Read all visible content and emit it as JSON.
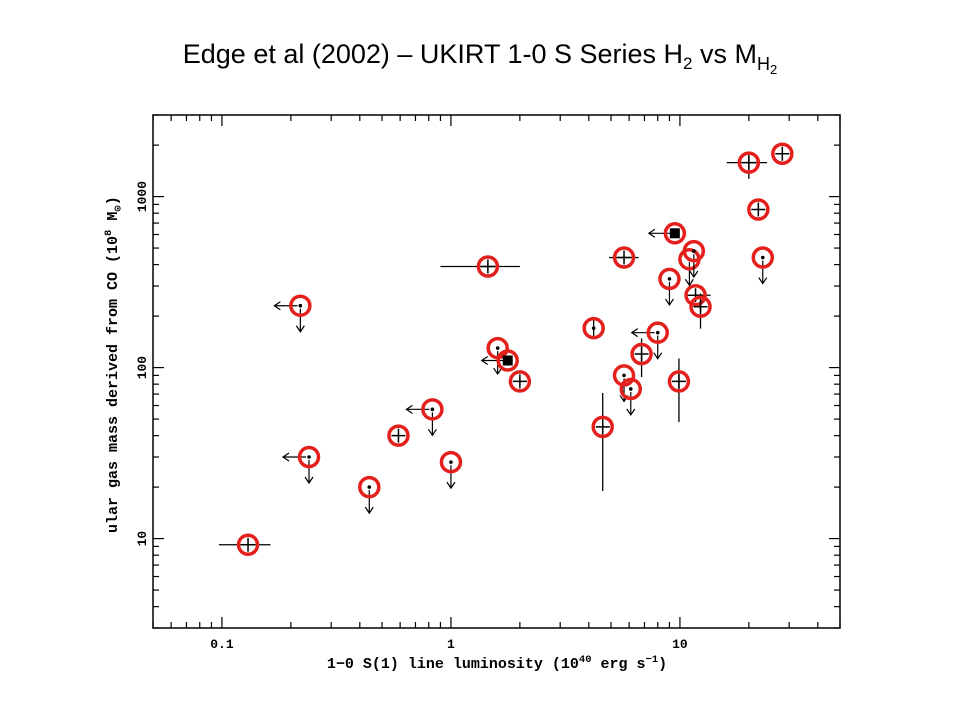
{
  "chart_data": {
    "type": "scatter",
    "title": {
      "text": "Edge et al (2002) – UKIRT 1-0 S Series H",
      "sub": "2",
      "text2": " vs M",
      "sub2": "H",
      "subsub": "2"
    },
    "xlabel": {
      "text": "1−0 S(1) line luminosity (10",
      "sup": "40",
      "text2": " erg s",
      "sup2": "−1",
      "text3": ")"
    },
    "ylabel": {
      "text": "ular gas mass derived from CO (10",
      "sup": "8",
      "text2": " M",
      "sub": "⊙",
      "text3": ")"
    },
    "xscale": "log",
    "yscale": "log",
    "xlim": [
      0.05,
      50
    ],
    "ylim": [
      3,
      3000
    ],
    "x_ticks": [
      {
        "value": 0.1,
        "label": "0.1"
      },
      {
        "value": 1,
        "label": "1"
      },
      {
        "value": 10,
        "label": "10"
      }
    ],
    "y_ticks": [
      {
        "value": 10,
        "label": "10"
      },
      {
        "value": 100,
        "label": "100"
      },
      {
        "value": 1000,
        "label": "1000"
      }
    ],
    "grid": false,
    "marker_color": "#000000",
    "highlight_color": "#e3201b",
    "points": [
      {
        "x": 0.13,
        "y": 9.2,
        "marker": "cross",
        "xerr": [
          0.097,
          0.163
        ]
      },
      {
        "x": 0.22,
        "y": 230,
        "marker": "dot",
        "limits": [
          "left",
          "down"
        ]
      },
      {
        "x": 0.24,
        "y": 30,
        "marker": "dot",
        "limits": [
          "left",
          "down"
        ]
      },
      {
        "x": 0.44,
        "y": 20,
        "marker": "dot",
        "limits": [
          "down"
        ]
      },
      {
        "x": 0.59,
        "y": 40,
        "marker": "cross"
      },
      {
        "x": 0.83,
        "y": 57,
        "marker": "dot",
        "limits": [
          "left",
          "down"
        ]
      },
      {
        "x": 1.0,
        "y": 28,
        "marker": "dot",
        "limits": [
          "down"
        ]
      },
      {
        "x": 1.45,
        "y": 390,
        "marker": "cross",
        "xerr": [
          0.9,
          2.0
        ]
      },
      {
        "x": 1.6,
        "y": 130,
        "marker": "dot",
        "limits": [
          "down"
        ]
      },
      {
        "x": 1.77,
        "y": 110,
        "marker": "square",
        "limits": [
          "left"
        ]
      },
      {
        "x": 2.0,
        "y": 83,
        "marker": "cross"
      },
      {
        "x": 4.2,
        "y": 170,
        "marker": "dot",
        "yerr": [
          152,
          194
        ]
      },
      {
        "x": 4.6,
        "y": 45,
        "marker": "cross",
        "yerr": [
          19,
          71
        ]
      },
      {
        "x": 5.7,
        "y": 440,
        "marker": "cross",
        "xerr": [
          4.9,
          6.6
        ]
      },
      {
        "x": 5.7,
        "y": 90,
        "marker": "dot",
        "limits": [
          "down"
        ]
      },
      {
        "x": 6.1,
        "y": 75,
        "marker": "dot",
        "limits": [
          "down"
        ]
      },
      {
        "x": 6.8,
        "y": 120,
        "marker": "cross",
        "yerr": [
          88,
          148
        ]
      },
      {
        "x": 8.0,
        "y": 160,
        "marker": "dot",
        "limits": [
          "left",
          "down"
        ]
      },
      {
        "x": 9.0,
        "y": 330,
        "marker": "dot",
        "limits": [
          "down"
        ]
      },
      {
        "x": 9.5,
        "y": 610,
        "marker": "square",
        "limits": [
          "left"
        ]
      },
      {
        "x": 9.9,
        "y": 83,
        "marker": "cross",
        "yerr": [
          48,
          113
        ]
      },
      {
        "x": 11.0,
        "y": 430,
        "marker": "dot",
        "limits": [
          "down"
        ]
      },
      {
        "x": 11.5,
        "y": 480,
        "marker": "dot",
        "limits": [
          "down"
        ]
      },
      {
        "x": 11.7,
        "y": 265,
        "marker": "cross",
        "xerr": [
          10.5,
          13.6
        ]
      },
      {
        "x": 12.3,
        "y": 227,
        "marker": "cross",
        "yerr": [
          169,
          271
        ]
      },
      {
        "x": 20,
        "y": 1580,
        "marker": "cross",
        "xerr": [
          16,
          24
        ],
        "yerr": [
          1270,
          1780
        ]
      },
      {
        "x": 22,
        "y": 840,
        "marker": "cross"
      },
      {
        "x": 23,
        "y": 440,
        "marker": "dot",
        "limits": [
          "down"
        ]
      },
      {
        "x": 28,
        "y": 1780,
        "marker": "cross"
      }
    ]
  }
}
